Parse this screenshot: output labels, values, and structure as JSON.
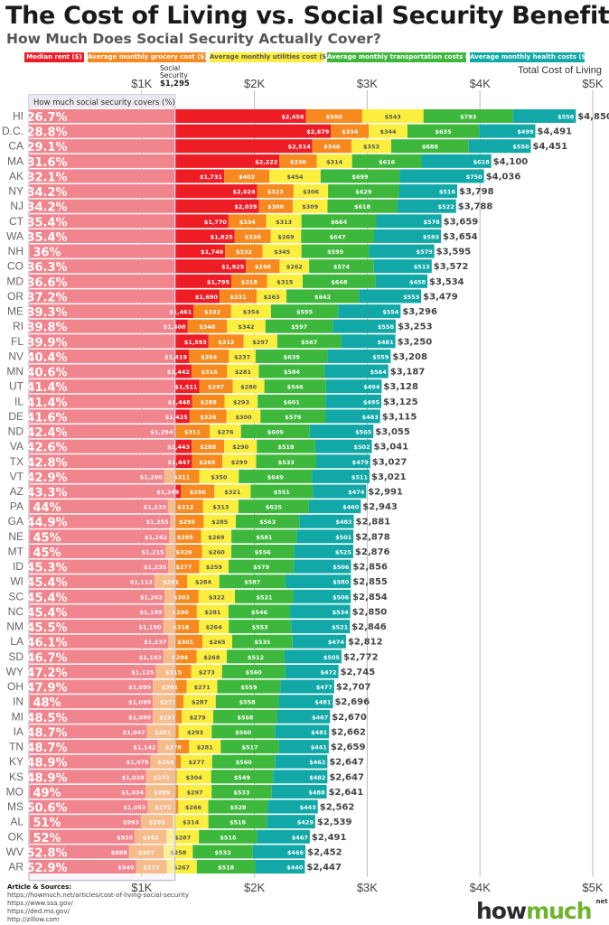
{
  "title": "The Cost of Living vs. Social Security Benefits",
  "subtitle": "How Much Does Social Security Actually Cover?",
  "legend": [
    {
      "label": "Median rent ($)",
      "color": "#ee1c25"
    },
    {
      "label": "Average monthly grocery cost ($)",
      "color": "#f7891f"
    },
    {
      "label": "Average monthly utilities cost ($)",
      "color": "#fbee3f"
    },
    {
      "label": "Average monthly transportation costs ($)",
      "color": "#3eb83c"
    },
    {
      "label": "Average monthly health costs ($)",
      "color": "#12a8a8"
    }
  ],
  "sources": {
    "heading": "Article & Sources:",
    "lines": [
      "https://howmuch.net/articles/cost-of-living-social-security",
      "https://www.ssa.gov/",
      "https://ded.mo.gov/",
      "http://zillow.com"
    ]
  },
  "logo": {
    "main": "how",
    "accent": "much",
    "suffix": "net"
  },
  "chart_data": {
    "type": "bar",
    "orientation": "horizontal",
    "stacked": true,
    "xlim": [
      0,
      5000
    ],
    "x_ticks": [
      "$1K",
      "$2K",
      "$3K",
      "$4K",
      "$5K"
    ],
    "x_tick_values": [
      1000,
      2000,
      3000,
      4000,
      5000
    ],
    "total_label": "Total Cost of Living",
    "reference_line": {
      "label1": "Social",
      "label2": "Security",
      "value_label": "$1,295",
      "value": 1295
    },
    "coverage_label": "How much social security covers (%)",
    "series_names": [
      "Median rent ($)",
      "Average monthly grocery cost ($)",
      "Average monthly utilities cost ($)",
      "Average monthly transportation costs ($)",
      "Average monthly health costs ($)"
    ],
    "rows": [
      [
        "HI",
        "26.7%",
        2456,
        500,
        543,
        793,
        558,
        "$4,850"
      ],
      [
        "D.C.",
        "28.8%",
        2679,
        334,
        344,
        635,
        499,
        "$4,491"
      ],
      [
        "CA",
        "29.1%",
        2514,
        346,
        353,
        688,
        550,
        "$4,451"
      ],
      [
        "MA",
        "31.6%",
        2222,
        330,
        314,
        616,
        618,
        "$4,100"
      ],
      [
        "AK",
        "32.1%",
        1731,
        402,
        454,
        699,
        750,
        "$4,036"
      ],
      [
        "NY",
        "34.2%",
        2024,
        323,
        306,
        629,
        516,
        "$3,798"
      ],
      [
        "NJ",
        "34.2%",
        2039,
        300,
        309,
        618,
        522,
        "$3,788"
      ],
      [
        "CT",
        "35.4%",
        1770,
        334,
        313,
        664,
        578,
        "$3,659"
      ],
      [
        "WA",
        "35.4%",
        1825,
        320,
        269,
        647,
        593,
        "$3,654"
      ],
      [
        "NH",
        "36%",
        1740,
        332,
        345,
        599,
        579,
        "$3,595"
      ],
      [
        "CO",
        "36.3%",
        1925,
        298,
        262,
        574,
        513,
        "$3,572"
      ],
      [
        "MD",
        "36.6%",
        1795,
        318,
        315,
        648,
        458,
        "$3,534"
      ],
      [
        "OR",
        "37.2%",
        1690,
        331,
        263,
        642,
        553,
        "$3,479"
      ],
      [
        "ME",
        "39.3%",
        1461,
        332,
        354,
        595,
        554,
        "$3,296"
      ],
      [
        "RI",
        "39.8%",
        1408,
        348,
        342,
        597,
        558,
        "$3,253"
      ],
      [
        "FL",
        "39.9%",
        1593,
        312,
        297,
        567,
        481,
        "$3,250"
      ],
      [
        "NV",
        "40.4%",
        1419,
        354,
        237,
        639,
        559,
        "$3,208"
      ],
      [
        "MN",
        "40.6%",
        1442,
        316,
        281,
        584,
        564,
        "$3,187"
      ],
      [
        "UT",
        "41.4%",
        1511,
        297,
        280,
        546,
        494,
        "$3,128"
      ],
      [
        "IL",
        "41.4%",
        1448,
        288,
        293,
        601,
        495,
        "$3,125"
      ],
      [
        "DE",
        "41.6%",
        1425,
        328,
        300,
        579,
        483,
        "$3,115"
      ],
      [
        "ND",
        "42.4%",
        1294,
        311,
        276,
        609,
        565,
        "$3,055"
      ],
      [
        "VA",
        "42.6%",
        1443,
        288,
        290,
        518,
        502,
        "$3,041"
      ],
      [
        "TX",
        "42.8%",
        1447,
        269,
        299,
        533,
        479,
        "$3,027"
      ],
      [
        "VT",
        "42.9%",
        1200,
        311,
        350,
        649,
        511,
        "$3,021"
      ],
      [
        "AZ",
        "43.3%",
        1349,
        296,
        321,
        551,
        474,
        "$2,991"
      ],
      [
        "PA",
        "44%",
        1233,
        312,
        313,
        625,
        460,
        "$2,943"
      ],
      [
        "GA",
        "44.9%",
        1255,
        295,
        285,
        563,
        483,
        "$2,881"
      ],
      [
        "NE",
        "45%",
        1242,
        285,
        269,
        581,
        501,
        "$2,878"
      ],
      [
        "MT",
        "45%",
        1215,
        320,
        260,
        556,
        525,
        "$2,876"
      ],
      [
        "ID",
        "45.3%",
        1235,
        277,
        259,
        579,
        506,
        "$2,856"
      ],
      [
        "WI",
        "45.4%",
        1113,
        291,
        284,
        587,
        580,
        "$2,855"
      ],
      [
        "SC",
        "45.4%",
        1202,
        303,
        322,
        521,
        506,
        "$2,854"
      ],
      [
        "NC",
        "45.4%",
        1199,
        290,
        281,
        546,
        534,
        "$2,850"
      ],
      [
        "NM",
        "45.5%",
        1190,
        318,
        264,
        553,
        521,
        "$2,846"
      ],
      [
        "LA",
        "46.1%",
        1237,
        301,
        265,
        535,
        474,
        "$2,812"
      ],
      [
        "SD",
        "46.7%",
        1193,
        294,
        268,
        512,
        505,
        "$2,772"
      ],
      [
        "WY",
        "47.2%",
        1125,
        315,
        273,
        560,
        472,
        "$2,745"
      ],
      [
        "OH",
        "47.9%",
        1099,
        301,
        271,
        559,
        477,
        "$2,707"
      ],
      [
        "IN",
        "48%",
        1099,
        271,
        287,
        558,
        481,
        "$2,696"
      ],
      [
        "MI",
        "48.5%",
        1099,
        257,
        279,
        568,
        467,
        "$2,670"
      ],
      [
        "IA",
        "48.7%",
        1047,
        281,
        293,
        560,
        481,
        "$2,662"
      ],
      [
        "TN",
        "48.7%",
        1142,
        278,
        281,
        517,
        441,
        "$2,659"
      ],
      [
        "KY",
        "48.9%",
        1079,
        269,
        277,
        560,
        462,
        "$2,647"
      ],
      [
        "KS",
        "48.9%",
        1039,
        273,
        304,
        549,
        482,
        "$2,647"
      ],
      [
        "MO",
        "49%",
        1034,
        289,
        297,
        533,
        488,
        "$2,641"
      ],
      [
        "MS",
        "50.6%",
        1053,
        272,
        266,
        528,
        443,
        "$2,562"
      ],
      [
        "AL",
        "51%",
        993,
        285,
        314,
        518,
        429,
        "$2,539"
      ],
      [
        "OK",
        "52%",
        939,
        282,
        287,
        516,
        467,
        "$2,491"
      ],
      [
        "WV",
        "52.8%",
        888,
        307,
        258,
        533,
        466,
        "$2,452"
      ],
      [
        "AR",
        "52.9%",
        949,
        273,
        267,
        518,
        440,
        "$2,447"
      ]
    ]
  }
}
